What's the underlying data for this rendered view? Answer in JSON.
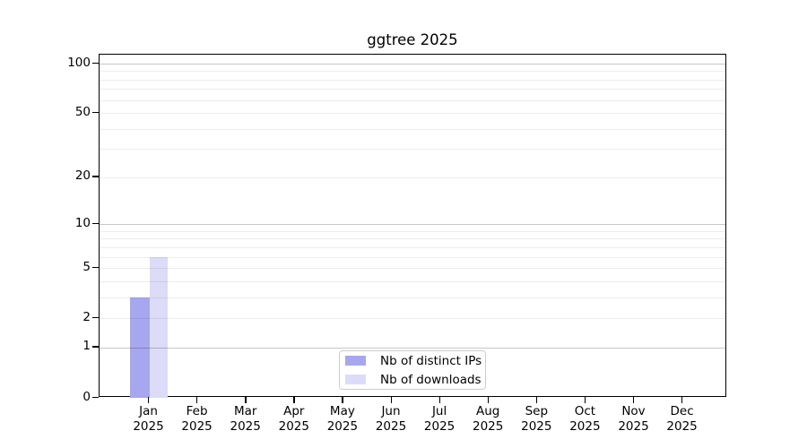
{
  "chart_data": {
    "type": "bar",
    "title": "ggtree 2025",
    "categories": [
      "Jan 2025",
      "Feb 2025",
      "Mar 2025",
      "Apr 2025",
      "May 2025",
      "Jun 2025",
      "Jul 2025",
      "Aug 2025",
      "Sep 2025",
      "Oct 2025",
      "Nov 2025",
      "Dec 2025"
    ],
    "x_tick_top": [
      "Jan",
      "Feb",
      "Mar",
      "Apr",
      "May",
      "Jun",
      "Jul",
      "Aug",
      "Sep",
      "Oct",
      "Nov",
      "Dec"
    ],
    "x_tick_bottom": "2025",
    "series": [
      {
        "name": "Nb of distinct IPs",
        "color": "#a7a7ef",
        "values": [
          3,
          0,
          0,
          0,
          0,
          0,
          0,
          0,
          0,
          0,
          0,
          0
        ]
      },
      {
        "name": "Nb of downloads",
        "color": "#dcdcf8",
        "values": [
          6,
          0,
          0,
          0,
          0,
          0,
          0,
          0,
          0,
          0,
          0,
          0
        ]
      }
    ],
    "y_axis": {
      "scale": "log1p",
      "tick_labels": [
        "0",
        "1",
        "2",
        "5",
        "10",
        "20",
        "50",
        "100"
      ],
      "tick_values": [
        0,
        1,
        2,
        5,
        10,
        20,
        50,
        100
      ],
      "top_value": 119,
      "major_gridlines": [
        1,
        10,
        100
      ],
      "minor_gridlines": [
        2,
        3,
        4,
        5,
        6,
        7,
        8,
        9,
        20,
        30,
        40,
        50,
        60,
        70,
        80,
        90
      ]
    },
    "legend": {
      "position": "inside-bottom-center",
      "entries": [
        {
          "label": "Nb of distinct IPs",
          "color": "#a7a7ef"
        },
        {
          "label": "Nb of downloads",
          "color": "#dcdcf8"
        }
      ]
    },
    "grid": true,
    "background": "#ffffff",
    "xlabel": "",
    "ylabel": ""
  },
  "colors": {
    "grid_major": "rgba(0,0,0,0.22)",
    "grid_minor": "rgba(0,0,0,0.075)",
    "axis": "#000000",
    "text": "#000000",
    "legend_border": "#cccccc"
  }
}
